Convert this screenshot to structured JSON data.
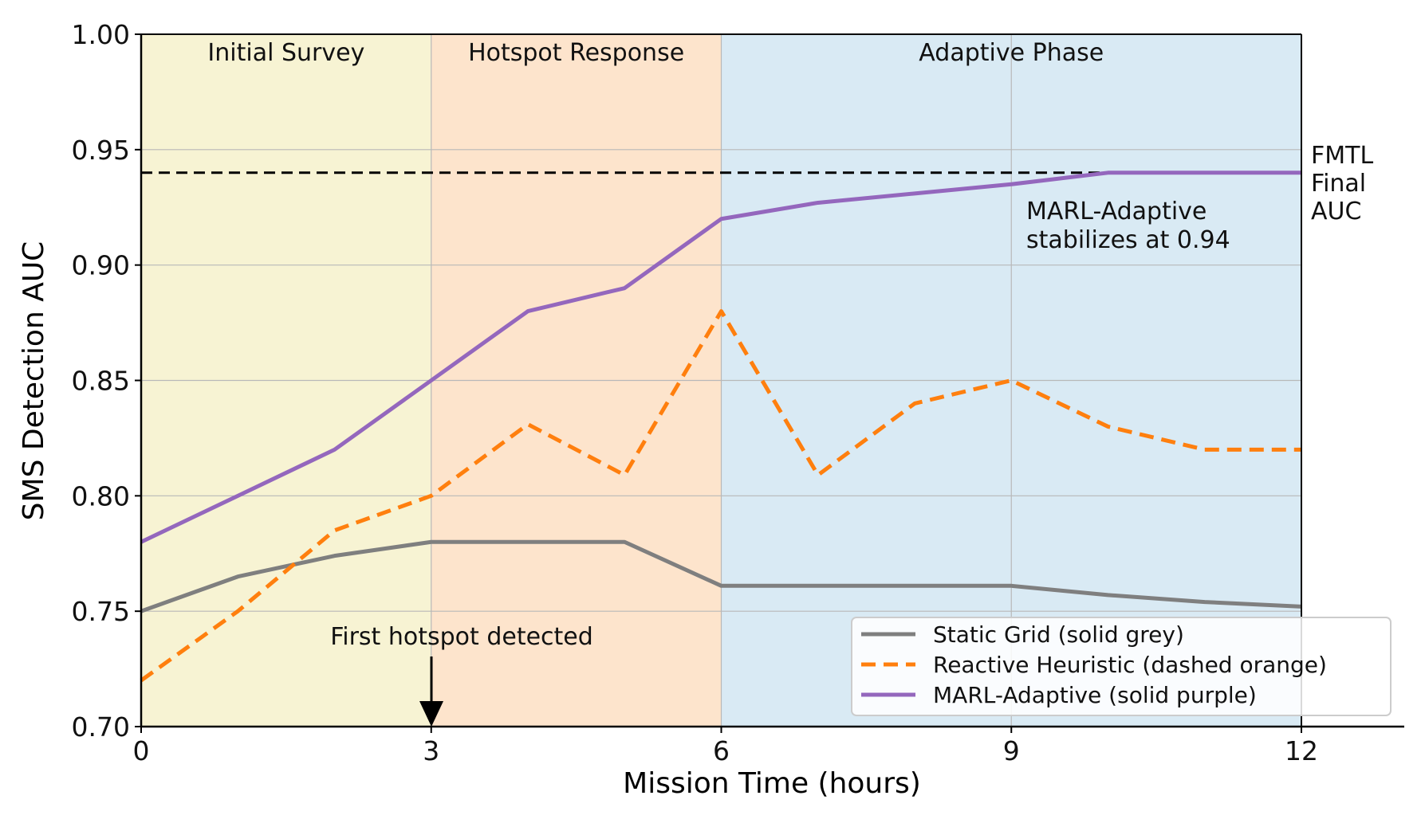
{
  "chart_data": {
    "type": "line",
    "xlabel": "Mission Time (hours)",
    "ylabel": "SMS Detection AUC",
    "xlim": [
      0,
      12
    ],
    "ylim": [
      0.7,
      1.0
    ],
    "xticks": [
      "0",
      "3",
      "6",
      "9",
      "12"
    ],
    "xtick_values": [
      0,
      3,
      6,
      9,
      12
    ],
    "yticks": [
      "0.70",
      "0.75",
      "0.80",
      "0.85",
      "0.90",
      "0.95",
      "1.00"
    ],
    "ytick_values": [
      0.7,
      0.75,
      0.8,
      0.85,
      0.9,
      0.95,
      1.0
    ],
    "grid": true,
    "legend_placement": "bottom-right",
    "x": [
      0,
      1,
      2,
      3,
      4,
      5,
      6,
      7,
      8,
      9,
      10,
      11,
      12
    ],
    "series": [
      {
        "name": "Static Grid (solid grey)",
        "color": "#7f7f7f",
        "dash": false,
        "values": [
          0.75,
          0.765,
          0.774,
          0.78,
          0.78,
          0.78,
          0.761,
          0.761,
          0.761,
          0.761,
          0.757,
          0.754,
          0.752
        ]
      },
      {
        "name": "Reactive Heuristic (dashed orange)",
        "color": "#ff7f0e",
        "dash": true,
        "values": [
          0.72,
          0.75,
          0.785,
          0.8,
          0.831,
          0.809,
          0.88,
          0.809,
          0.84,
          0.85,
          0.83,
          0.82,
          0.82
        ]
      },
      {
        "name": "MARL-Adaptive (solid purple)",
        "color": "#9467bd",
        "dash": false,
        "values": [
          0.78,
          0.8,
          0.82,
          0.85,
          0.88,
          0.89,
          0.92,
          0.927,
          0.931,
          0.935,
          0.94,
          0.94,
          0.94
        ]
      }
    ],
    "phases": [
      {
        "label": "Initial Survey",
        "start": 0,
        "end": 3,
        "color": "#f7f3d3"
      },
      {
        "label": "Hotspot Response",
        "start": 3,
        "end": 6,
        "color": "#fde4cc"
      },
      {
        "label": "Adaptive Phase",
        "start": 6,
        "end": 12,
        "color": "#d9eaf4"
      }
    ],
    "reference_line": {
      "value": 0.94,
      "label_lines": [
        "FMTL",
        "Final",
        "AUC"
      ]
    },
    "annotations": {
      "hotspot": {
        "text": "First hotspot detected",
        "x": 3
      },
      "stabilize": {
        "lines": [
          "MARL-Adaptive",
          "stabilizes at 0.94"
        ]
      }
    }
  }
}
